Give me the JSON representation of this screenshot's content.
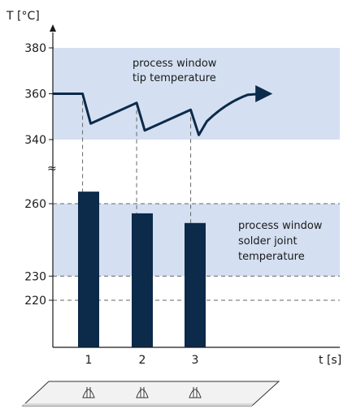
{
  "chart_data": {
    "type": "line",
    "y_axis_label": "T [°C]",
    "x_axis_label": "t [s]",
    "y_ticks": [
      220,
      230,
      260,
      340,
      360,
      380
    ],
    "x_ticks": [
      "1",
      "2",
      "3"
    ],
    "axis_break_symbol": "≈",
    "tip_temperature_window": {
      "label_lines": [
        "process window",
        "tip temperature"
      ],
      "range": [
        340,
        380
      ],
      "color": "#d4e0f1"
    },
    "solder_joint_window": {
      "label_lines": [
        "process window",
        "solder joint",
        "temperature"
      ],
      "range": [
        230,
        260
      ],
      "color": "#d4e0f1"
    },
    "tip_temperature_curve": {
      "color": "#0c2a4a",
      "points": [
        {
          "t": 0.0,
          "T": 360
        },
        {
          "t": 0.55,
          "T": 360
        },
        {
          "t": 0.7,
          "T": 347
        },
        {
          "t": 1.55,
          "T": 356
        },
        {
          "t": 1.7,
          "T": 344
        },
        {
          "t": 2.55,
          "T": 353
        },
        {
          "t": 2.7,
          "T": 342
        },
        {
          "t": 2.85,
          "T": 348
        },
        {
          "t": 3.2,
          "T": 356
        },
        {
          "t": 3.6,
          "T": 359.5
        },
        {
          "t": 4.0,
          "T": 360
        }
      ]
    },
    "solder_joint_bars": {
      "color": "#0c2a4a",
      "categories": [
        "1",
        "2",
        "3"
      ],
      "values": [
        265,
        256,
        252
      ]
    },
    "guides": {
      "vertical_dashed_from": [
        "1",
        "2",
        "3"
      ]
    }
  }
}
